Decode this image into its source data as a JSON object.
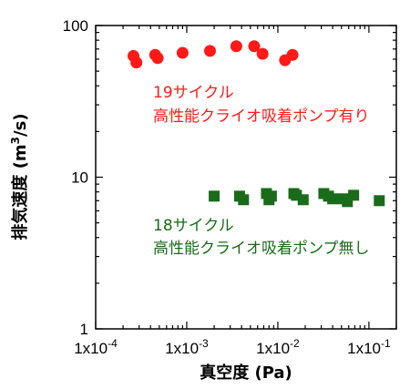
{
  "chart_data": {
    "type": "scatter",
    "xscale": "log",
    "yscale": "log",
    "xlim": [
      0.0001,
      0.2
    ],
    "ylim": [
      1,
      100
    ],
    "xlabel": "真空度 (Pa)",
    "ylabel": {
      "main": "排気速度 (m",
      "sup": "3",
      "tail": "/s)"
    },
    "xticks": [
      {
        "value": 0.0001,
        "base": "1x10",
        "exp": "-4"
      },
      {
        "value": 0.001,
        "base": "1x10",
        "exp": "-3"
      },
      {
        "value": 0.01,
        "base": "1x10",
        "exp": "-2"
      },
      {
        "value": 0.1,
        "base": "1x10",
        "exp": "-1"
      }
    ],
    "yticks": [
      {
        "value": 1,
        "label": "1"
      },
      {
        "value": 10,
        "label": "10"
      },
      {
        "value": 100,
        "label": "100"
      }
    ],
    "series": [
      {
        "marker": "circle",
        "color": "#ff1a1a",
        "label_line1": "19サイクル",
        "label_line2": "高性能クライオ吸着ポンプ有り",
        "points": [
          [
            0.00026,
            63
          ],
          [
            0.00028,
            57
          ],
          [
            0.00045,
            64
          ],
          [
            0.00048,
            61
          ],
          [
            0.0009,
            66
          ],
          [
            0.0018,
            68
          ],
          [
            0.0035,
            73
          ],
          [
            0.0055,
            73
          ],
          [
            0.0068,
            65
          ],
          [
            0.012,
            59
          ],
          [
            0.0145,
            64
          ]
        ]
      },
      {
        "marker": "square",
        "color": "#1a6b1a",
        "label_line1": "18サイクル",
        "label_line2": "高性能クライオ吸着ポンプ無し",
        "points": [
          [
            0.002,
            7.5
          ],
          [
            0.0038,
            7.5
          ],
          [
            0.0042,
            7.1
          ],
          [
            0.0075,
            7.8
          ],
          [
            0.008,
            7.1
          ],
          [
            0.0085,
            7.5
          ],
          [
            0.015,
            7.8
          ],
          [
            0.016,
            7.6
          ],
          [
            0.019,
            7.1
          ],
          [
            0.032,
            7.8
          ],
          [
            0.036,
            7.5
          ],
          [
            0.04,
            7.2
          ],
          [
            0.052,
            7.2
          ],
          [
            0.058,
            6.9
          ],
          [
            0.068,
            7.6
          ],
          [
            0.13,
            7.0
          ]
        ]
      }
    ]
  }
}
